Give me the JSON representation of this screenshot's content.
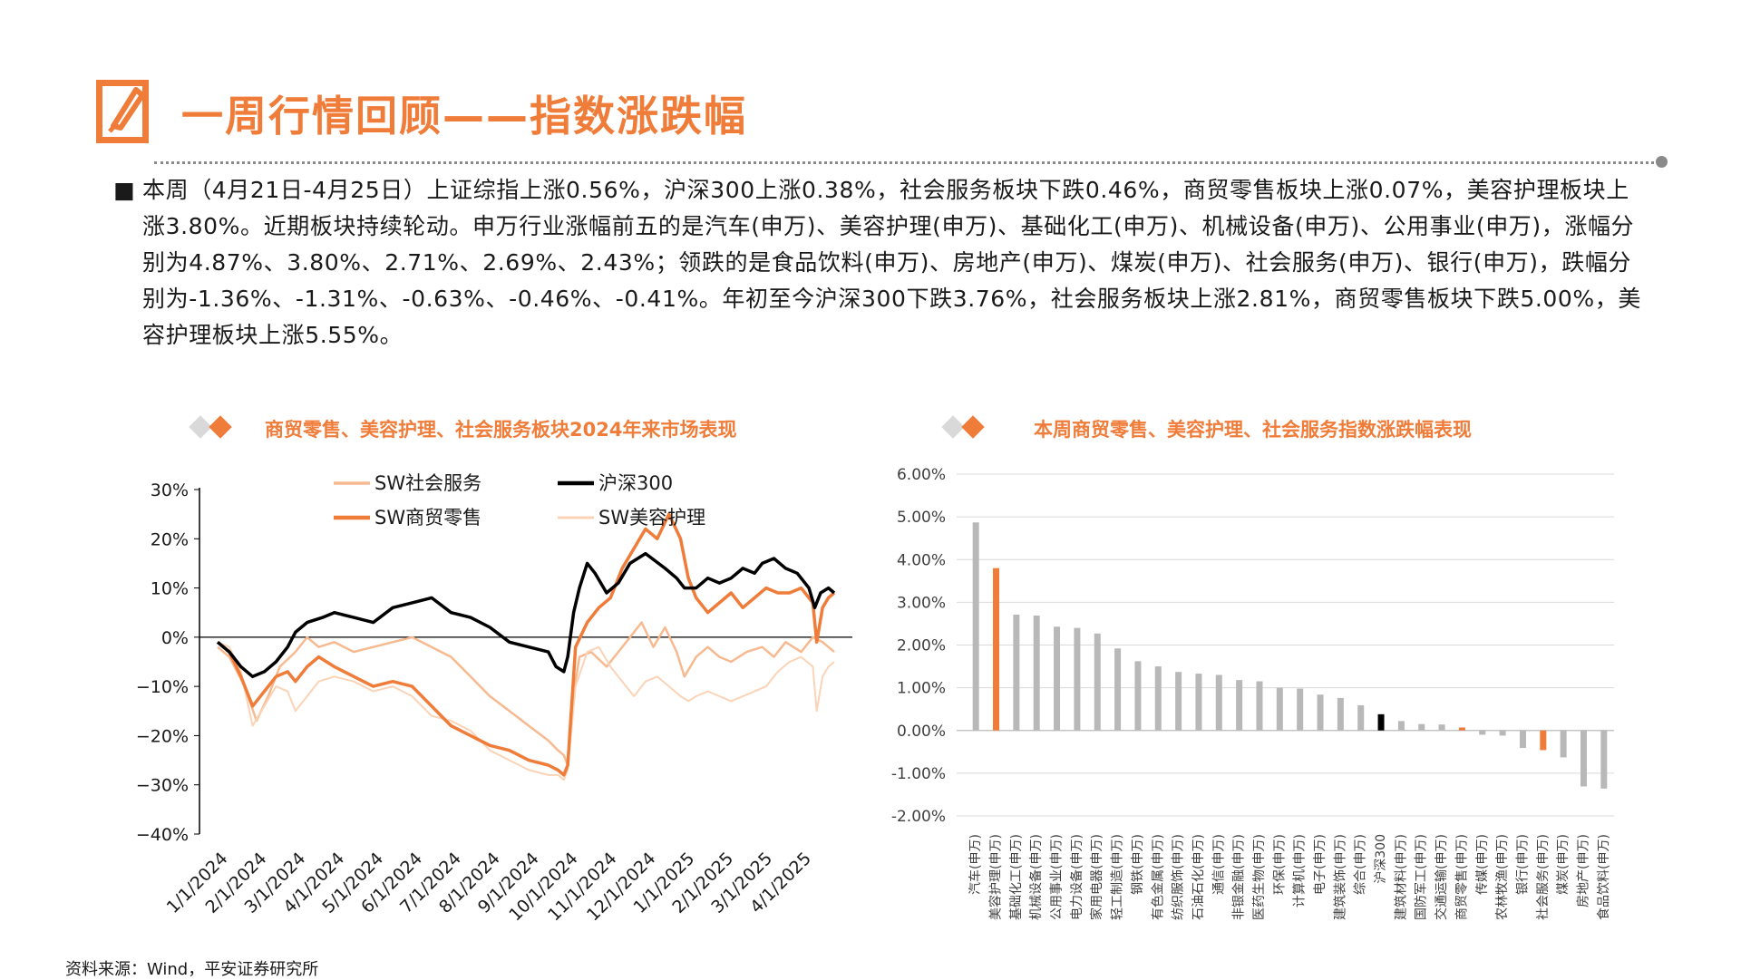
{
  "header": {
    "title": "一周行情回顾——指数涨跌幅"
  },
  "summary": {
    "bullet": "■",
    "text": "本周（4月21日-4月25日）上证综指上涨0.56%，沪深300上涨0.38%，社会服务板块下跌0.46%，商贸零售板块上涨0.07%，美容护理板块上涨3.80%。近期板块持续轮动。申万行业涨幅前五的是汽车(申万)、美容护理(申万)、基础化工(申万)、机械设备(申万)、公用事业(申万)，涨幅分别为4.87%、3.80%、2.71%、2.69%、2.43%；领跌的是食品饮料(申万)、房地产(申万)、煤炭(申万)、社会服务(申万)、银行(申万)，跌幅分别为-1.36%、-1.31%、-0.63%、-0.46%、-0.41%。年初至今沪深300下跌3.76%，社会服务板块上涨2.81%，商贸零售板块下跌5.00%，美容护理板块上涨5.55%。"
  },
  "source": "资料来源：Wind，平安证券研究所",
  "colors": {
    "accent": "#f07c3a",
    "light": "#f7b98f",
    "lighter": "#fbd3b6",
    "black": "#000000",
    "gray": "#b8b8b8"
  },
  "chart_data": [
    {
      "type": "line",
      "title": "商贸零售、美容护理、社会服务板块2024年来市场表现",
      "ylim": [
        -40,
        30
      ],
      "yticks": [
        "30%",
        "20%",
        "10%",
        "0%",
        "−10%",
        "−20%",
        "−30%",
        "−40%"
      ],
      "ytick_values": [
        30,
        20,
        10,
        0,
        -10,
        -20,
        -30,
        -40
      ],
      "x_labels": [
        "1/1/2024",
        "2/1/2024",
        "3/1/2024",
        "4/1/2024",
        "5/1/2024",
        "6/1/2024",
        "7/1/2024",
        "8/1/2024",
        "9/1/2024",
        "10/1/2024",
        "11/1/2024",
        "12/1/2024",
        "1/1/2025",
        "2/1/2025",
        "3/1/2025",
        "4/1/2025"
      ],
      "x_month_index": [
        0,
        1,
        2,
        3,
        4,
        5,
        6,
        7,
        8,
        9,
        10,
        11,
        12,
        13,
        14,
        15
      ],
      "series": [
        {
          "name": "SW社会服务",
          "style": "light",
          "width": 2.5,
          "x": [
            0,
            0.3,
            0.7,
            1.0,
            1.3,
            1.6,
            2.0,
            2.3,
            2.6,
            3.0,
            3.5,
            4.0,
            4.5,
            5.0,
            5.5,
            6.0,
            6.5,
            7.0,
            7.5,
            8.0,
            8.5,
            8.75,
            8.9,
            9.0,
            9.1,
            9.3,
            9.6,
            10.0,
            10.3,
            10.6,
            10.9,
            11.2,
            11.5,
            11.8,
            12.0,
            12.3,
            12.6,
            12.9,
            13.2,
            13.6,
            14.0,
            14.3,
            14.6,
            15.0,
            15.3,
            15.55,
            15.7,
            15.85
          ],
          "values": [
            -2,
            -4,
            -10,
            -17,
            -12,
            -6,
            -3,
            0,
            -2,
            -1,
            -3,
            -2,
            -1,
            0,
            -2,
            -4,
            -8,
            -12,
            -15,
            -18,
            -21,
            -23,
            -24,
            -26,
            -14,
            -4,
            -3,
            -6,
            -3,
            0,
            3,
            -2,
            2,
            -3,
            -8,
            -4,
            -2,
            -4,
            -5,
            -3,
            -2,
            -4,
            -1,
            -3,
            0,
            -1,
            -2,
            -3
          ]
        },
        {
          "name": "沪深300",
          "style": "black",
          "width": 3.5,
          "x": [
            0,
            0.3,
            0.6,
            0.9,
            1.2,
            1.5,
            1.8,
            2.0,
            2.3,
            2.7,
            3.0,
            3.5,
            4.0,
            4.5,
            5.0,
            5.5,
            6.0,
            6.5,
            7.0,
            7.5,
            8.0,
            8.5,
            8.7,
            8.9,
            9.0,
            9.15,
            9.3,
            9.5,
            9.7,
            10.0,
            10.3,
            10.6,
            11.0,
            11.5,
            11.8,
            12.0,
            12.3,
            12.6,
            12.9,
            13.2,
            13.5,
            13.8,
            14.0,
            14.3,
            14.6,
            14.9,
            15.2,
            15.35,
            15.5,
            15.7,
            15.85
          ],
          "values": [
            -1,
            -3,
            -6,
            -8,
            -7,
            -5,
            -2,
            1,
            3,
            4,
            5,
            4,
            3,
            6,
            7,
            8,
            5,
            4,
            2,
            -1,
            -2,
            -3,
            -6,
            -7,
            -4,
            5,
            10,
            15,
            13,
            9,
            11,
            15,
            17,
            14,
            12,
            10,
            10,
            12,
            11,
            12,
            14,
            13,
            15,
            16,
            14,
            13,
            10,
            6,
            9,
            10,
            9
          ]
        },
        {
          "name": "SW商贸零售",
          "style": "accent",
          "width": 3.5,
          "x": [
            0,
            0.3,
            0.6,
            0.9,
            1.2,
            1.5,
            1.8,
            2.0,
            2.3,
            2.6,
            3.0,
            3.5,
            4.0,
            4.5,
            5.0,
            5.5,
            6.0,
            6.5,
            7.0,
            7.5,
            8.0,
            8.5,
            8.75,
            8.9,
            9.0,
            9.2,
            9.5,
            9.8,
            10.1,
            10.4,
            10.7,
            11.0,
            11.3,
            11.6,
            11.9,
            12.1,
            12.3,
            12.6,
            12.9,
            13.2,
            13.5,
            13.8,
            14.1,
            14.4,
            14.7,
            15.0,
            15.3,
            15.4,
            15.55,
            15.7,
            15.85
          ],
          "values": [
            -1,
            -3,
            -8,
            -14,
            -11,
            -8,
            -7,
            -9,
            -6,
            -4,
            -6,
            -8,
            -10,
            -9,
            -10,
            -14,
            -18,
            -20,
            -22,
            -23,
            -25,
            -26,
            -27,
            -28,
            -26,
            -2,
            3,
            6,
            8,
            14,
            18,
            22,
            20,
            25,
            20,
            12,
            8,
            5,
            7,
            9,
            6,
            8,
            10,
            9,
            9,
            10,
            7,
            -1,
            6,
            8,
            9
          ]
        },
        {
          "name": "SW美容护理",
          "style": "light",
          "width": 2,
          "x": [
            0,
            0.3,
            0.6,
            0.9,
            1.2,
            1.5,
            1.8,
            2.0,
            2.3,
            2.6,
            3.0,
            3.5,
            4.0,
            4.5,
            5.0,
            5.5,
            6.0,
            6.5,
            7.0,
            7.5,
            8.0,
            8.5,
            8.75,
            8.9,
            9.0,
            9.2,
            9.5,
            9.8,
            10.1,
            10.4,
            10.7,
            11.0,
            11.3,
            11.6,
            11.9,
            12.1,
            12.3,
            12.6,
            12.9,
            13.2,
            13.5,
            13.8,
            14.1,
            14.4,
            14.7,
            15.0,
            15.3,
            15.4,
            15.55,
            15.7,
            15.85
          ],
          "values": [
            -1,
            -2,
            -7,
            -18,
            -14,
            -10,
            -11,
            -15,
            -12,
            -9,
            -8,
            -9,
            -11,
            -10,
            -12,
            -16,
            -17,
            -19,
            -23,
            -25,
            -27,
            -28,
            -28,
            -29,
            -27,
            -10,
            -3,
            -2,
            -6,
            -9,
            -12,
            -9,
            -8,
            -10,
            -12,
            -13,
            -12,
            -11,
            -12,
            -13,
            -12,
            -11,
            -10,
            -7,
            -5,
            -4,
            -6,
            -15,
            -8,
            -6,
            -5
          ]
        }
      ]
    },
    {
      "type": "bar",
      "title": "本周商贸零售、美容护理、社会服务指数涨跌幅表现",
      "ylim": [
        -2,
        6
      ],
      "yticks": [
        "6.00%",
        "5.00%",
        "4.00%",
        "3.00%",
        "2.00%",
        "1.00%",
        "0.00%",
        "-1.00%",
        "-2.00%"
      ],
      "ytick_values": [
        6,
        5,
        4,
        3,
        2,
        1,
        0,
        -1,
        -2
      ],
      "categories": [
        "汽车(申万)",
        "美容护理(申万)",
        "基础化工(申万)",
        "机械设备(申万)",
        "公用事业(申万)",
        "电力设备(申万)",
        "家用电器(申万)",
        "轻工制造(申万)",
        "钢铁(申万)",
        "有色金属(申万)",
        "纺织服饰(申万)",
        "石油石化(申万)",
        "通信(申万)",
        "非银金融(申万)",
        "医药生物(申万)",
        "环保(申万)",
        "计算机(申万)",
        "电子(申万)",
        "建筑装饰(申万)",
        "综合(申万)",
        "沪深300",
        "建筑材料(申万)",
        "国防军工(申万)",
        "交通运输(申万)",
        "商贸零售(申万)",
        "传媒(申万)",
        "农林牧渔(申万)",
        "银行(申万)",
        "社会服务(申万)",
        "煤炭(申万)",
        "房地产(申万)",
        "食品饮料(申万)"
      ],
      "values": [
        4.87,
        3.8,
        2.71,
        2.69,
        2.43,
        2.4,
        2.27,
        1.92,
        1.62,
        1.5,
        1.37,
        1.33,
        1.3,
        1.18,
        1.15,
        1.0,
        0.98,
        0.84,
        0.76,
        0.59,
        0.38,
        0.22,
        0.15,
        0.14,
        0.07,
        -0.1,
        -0.12,
        -0.41,
        -0.46,
        -0.63,
        -1.31,
        -1.36
      ],
      "highlight": {
        "美容护理(申万)": "accent",
        "沪深300": "black",
        "商贸零售(申万)": "accent",
        "社会服务(申万)": "accent"
      }
    }
  ]
}
